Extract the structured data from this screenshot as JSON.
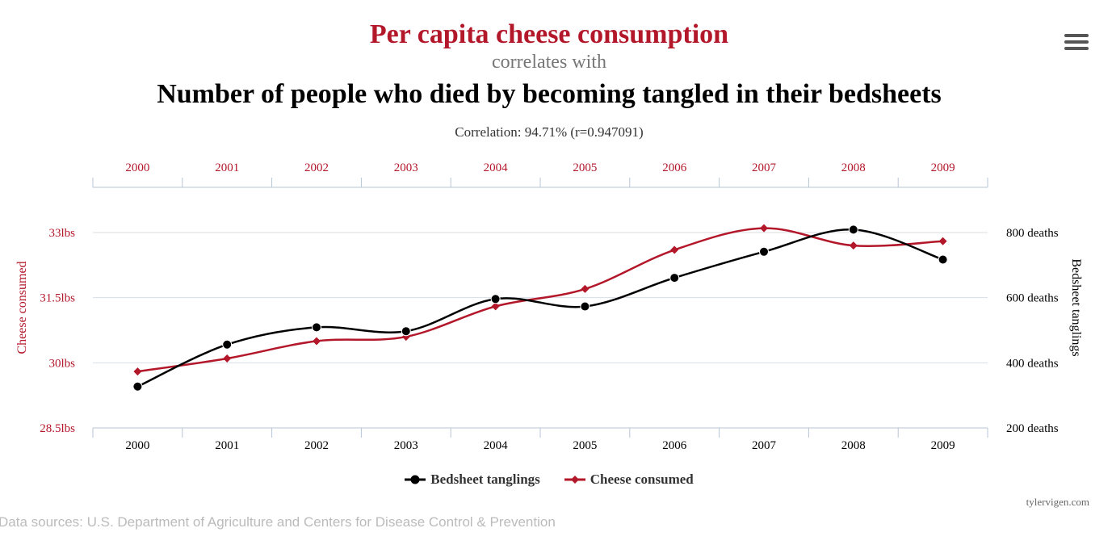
{
  "header": {
    "title": "Per capita cheese consumption",
    "connector": "correlates with",
    "subtitle": "Number of people who died by becoming tangled in their bedsheets",
    "correlation": "Correlation: 94.71% (r=0.947091)"
  },
  "footer": {
    "source": "Data sources: U.S. Department of Agriculture and Centers for Disease Control & Prevention",
    "credit": "tylervigen.com"
  },
  "chart_data": {
    "type": "line",
    "categories": [
      "2000",
      "2001",
      "2002",
      "2003",
      "2004",
      "2005",
      "2006",
      "2007",
      "2008",
      "2009"
    ],
    "left_axis": {
      "label": "Cheese consumed",
      "ticks": [
        28.5,
        30,
        31.5,
        33
      ],
      "tick_labels": [
        "28.5lbs",
        "30lbs",
        "31.5lbs",
        "33lbs"
      ],
      "range": [
        28.5,
        33
      ],
      "color": "#b3172a"
    },
    "right_axis": {
      "label": "Bedsheet tanglings",
      "ticks": [
        200,
        400,
        600,
        800
      ],
      "tick_labels": [
        "200 deaths",
        "400 deaths",
        "600 deaths",
        "800 deaths"
      ],
      "range": [
        200,
        800
      ],
      "color": "#000000"
    },
    "series": [
      {
        "name": "Bedsheet tanglings",
        "axis": "right",
        "color": "#000000",
        "marker": "circle",
        "values": [
          327,
          456,
          509,
          497,
          596,
          573,
          661,
          741,
          809,
          717
        ]
      },
      {
        "name": "Cheese consumed",
        "axis": "left",
        "color": "#b3172a",
        "marker": "diamond",
        "values": [
          29.8,
          30.1,
          30.5,
          30.6,
          31.3,
          31.7,
          32.6,
          33.1,
          32.7,
          32.8
        ]
      }
    ],
    "legend_placement": "bottom-center",
    "grid": true
  }
}
